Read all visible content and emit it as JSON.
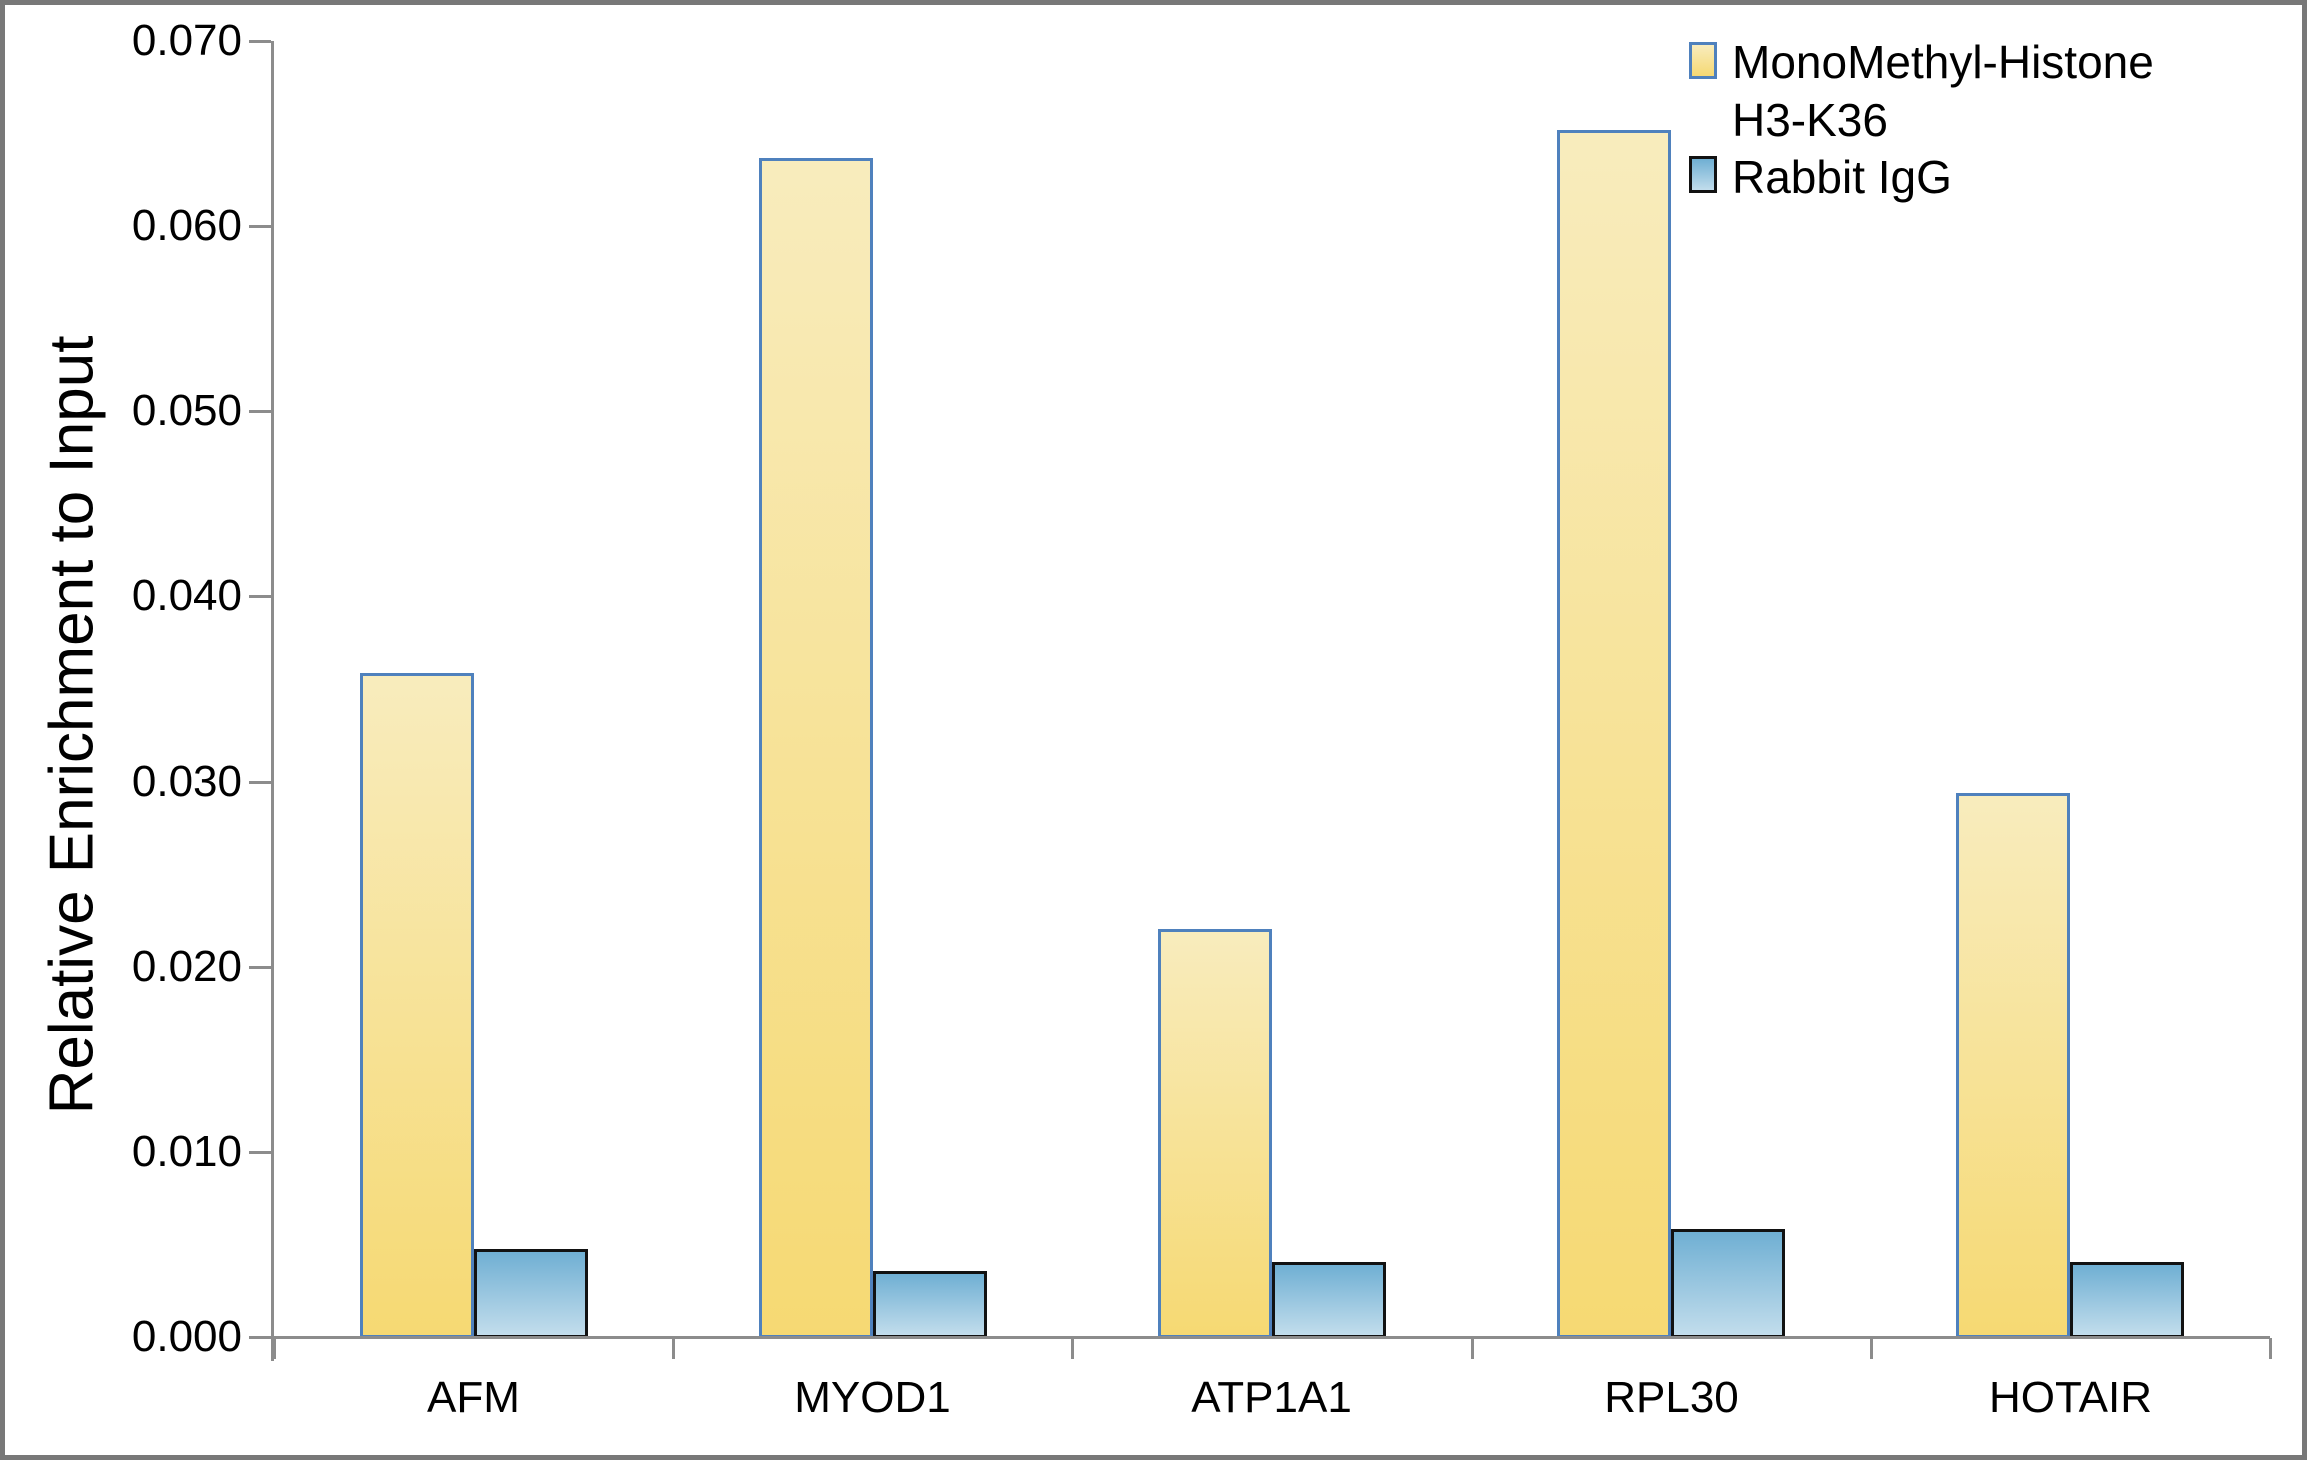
{
  "chart_data": {
    "type": "bar",
    "title": "",
    "ylabel": "Relative Enrichment to Input",
    "xlabel": "",
    "categories": [
      "AFM",
      "MYOD1",
      "ATP1A1",
      "RPL30",
      "HOTAIR"
    ],
    "series": [
      {
        "name": "MonoMethyl-Histone H3-K36",
        "values": [
          0.0359,
          0.0637,
          0.0221,
          0.0652,
          0.0294
        ]
      },
      {
        "name": "Rabbit IgG",
        "values": [
          0.0048,
          0.0036,
          0.0041,
          0.0059,
          0.0041
        ]
      }
    ],
    "ylim": [
      0,
      0.07
    ],
    "ytick_step": 0.01,
    "ytick_labels": [
      "0.000",
      "0.010",
      "0.020",
      "0.030",
      "0.040",
      "0.050",
      "0.060",
      "0.070"
    ],
    "grid": false,
    "legend_position": "top-right",
    "series_colors": [
      {
        "fill_top": "#F8ECBD",
        "fill_bottom": "#F6D973",
        "border": "#4F81BD"
      },
      {
        "fill_top": "#6FAFD3",
        "fill_bottom": "#C2DDEC",
        "border": "#121212"
      }
    ],
    "axis_color": "#8C8C8C",
    "text_color": "#000000"
  },
  "legend": {
    "items": [
      {
        "lines": [
          "MonoMethyl-Histone",
          "H3-K36"
        ]
      },
      {
        "lines": [
          "Rabbit IgG"
        ]
      }
    ]
  }
}
